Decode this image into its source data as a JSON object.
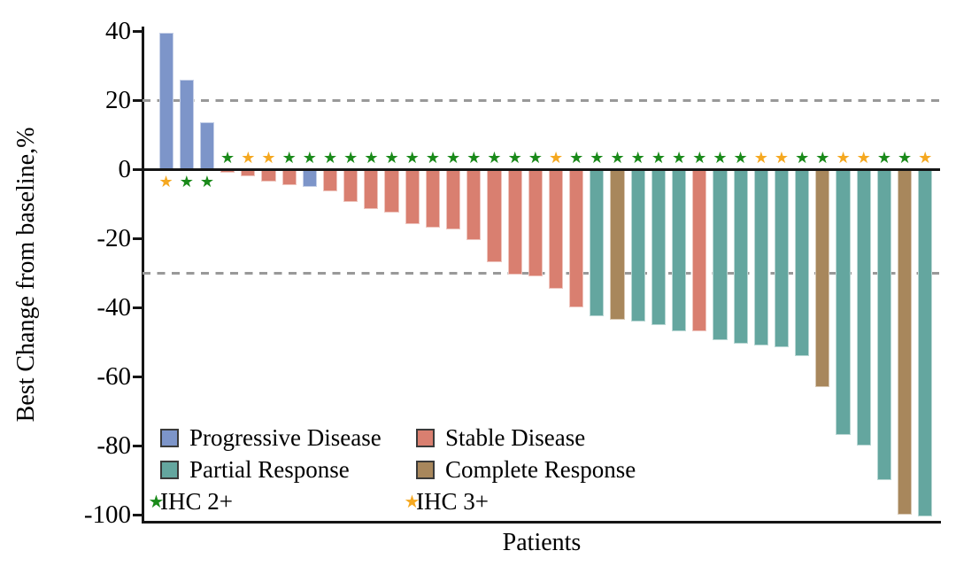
{
  "chart_data": {
    "type": "bar",
    "subtype": "waterfall",
    "title": "",
    "xlabel": "Patients",
    "ylabel": "Best Change from baseline,%",
    "ylim": [
      -100,
      40
    ],
    "yticks": [
      40,
      20,
      0,
      -20,
      -40,
      -60,
      -80,
      -100
    ],
    "reference_lines_y": [
      20,
      -30
    ],
    "grid": false,
    "legend_position": "bottom-left-inside",
    "colors": {
      "Progressive Disease": "#7d95c9",
      "Stable Disease": "#d97f70",
      "Partial Response": "#64a69f",
      "Complete Response": "#a8875c",
      "IHC 2+": "#1a8a1a",
      "IHC 3+": "#f5a820",
      "axis": "#151515",
      "dashed_line": "#999999"
    },
    "legend": {
      "items": [
        {
          "label": "Progressive Disease",
          "marker": "square",
          "color": "#7d95c9"
        },
        {
          "label": "Stable Disease",
          "marker": "square",
          "color": "#d97f70"
        },
        {
          "label": "Partial Response",
          "marker": "square",
          "color": "#64a69f"
        },
        {
          "label": "Complete Response",
          "marker": "square",
          "color": "#a8875c"
        },
        {
          "label": "IHC 2+",
          "marker": "star",
          "color": "#1a8a1a"
        },
        {
          "label": "IHC 3+",
          "marker": "star",
          "color": "#f5a820"
        }
      ]
    },
    "patients": [
      {
        "value": 39.5,
        "response": "Progressive Disease",
        "ihc": "IHC 3+"
      },
      {
        "value": 26,
        "response": "Progressive Disease",
        "ihc": "IHC 2+"
      },
      {
        "value": 13.5,
        "response": "Progressive Disease",
        "ihc": "IHC 2+"
      },
      {
        "value": -1,
        "response": "Stable Disease",
        "ihc": "IHC 2+"
      },
      {
        "value": -2,
        "response": "Stable Disease",
        "ihc": "IHC 3+"
      },
      {
        "value": -3.5,
        "response": "Stable Disease",
        "ihc": "IHC 3+"
      },
      {
        "value": -4.5,
        "response": "Stable Disease",
        "ihc": "IHC 2+"
      },
      {
        "value": -5,
        "response": "Progressive Disease",
        "ihc": "IHC 2+"
      },
      {
        "value": -6.5,
        "response": "Stable Disease",
        "ihc": "IHC 2+"
      },
      {
        "value": -9.5,
        "response": "Stable Disease",
        "ihc": "IHC 2+"
      },
      {
        "value": -11.5,
        "response": "Stable Disease",
        "ihc": "IHC 2+"
      },
      {
        "value": -12.5,
        "response": "Stable Disease",
        "ihc": "IHC 2+"
      },
      {
        "value": -16,
        "response": "Stable Disease",
        "ihc": "IHC 2+"
      },
      {
        "value": -17,
        "response": "Stable Disease",
        "ihc": "IHC 2+"
      },
      {
        "value": -17.5,
        "response": "Stable Disease",
        "ihc": "IHC 2+"
      },
      {
        "value": -20.5,
        "response": "Stable Disease",
        "ihc": "IHC 2+"
      },
      {
        "value": -27,
        "response": "Stable Disease",
        "ihc": "IHC 2+"
      },
      {
        "value": -30.5,
        "response": "Stable Disease",
        "ihc": "IHC 2+"
      },
      {
        "value": -31,
        "response": "Stable Disease",
        "ihc": "IHC 2+"
      },
      {
        "value": -34.5,
        "response": "Stable Disease",
        "ihc": "IHC 3+"
      },
      {
        "value": -40,
        "response": "Stable Disease",
        "ihc": "IHC 2+"
      },
      {
        "value": -42.5,
        "response": "Partial Response",
        "ihc": "IHC 2+"
      },
      {
        "value": -43.5,
        "response": "Complete Response",
        "ihc": "IHC 2+"
      },
      {
        "value": -44,
        "response": "Partial Response",
        "ihc": "IHC 2+"
      },
      {
        "value": -45,
        "response": "Partial Response",
        "ihc": "IHC 2+"
      },
      {
        "value": -47,
        "response": "Partial Response",
        "ihc": "IHC 2+"
      },
      {
        "value": -47,
        "response": "Stable Disease",
        "ihc": "IHC 2+"
      },
      {
        "value": -49.5,
        "response": "Partial Response",
        "ihc": "IHC 2+"
      },
      {
        "value": -50.5,
        "response": "Partial Response",
        "ihc": "IHC 2+"
      },
      {
        "value": -51,
        "response": "Partial Response",
        "ihc": "IHC 3+"
      },
      {
        "value": -51.5,
        "response": "Partial Response",
        "ihc": "IHC 3+"
      },
      {
        "value": -54,
        "response": "Partial Response",
        "ihc": "IHC 2+"
      },
      {
        "value": -63,
        "response": "Complete Response",
        "ihc": "IHC 2+"
      },
      {
        "value": -77,
        "response": "Partial Response",
        "ihc": "IHC 3+"
      },
      {
        "value": -80,
        "response": "Partial Response",
        "ihc": "IHC 3+"
      },
      {
        "value": -90,
        "response": "Partial Response",
        "ihc": "IHC 2+"
      },
      {
        "value": -100,
        "response": "Complete Response",
        "ihc": "IHC 2+"
      },
      {
        "value": -100.5,
        "response": "Partial Response",
        "ihc": "IHC 3+"
      }
    ]
  }
}
